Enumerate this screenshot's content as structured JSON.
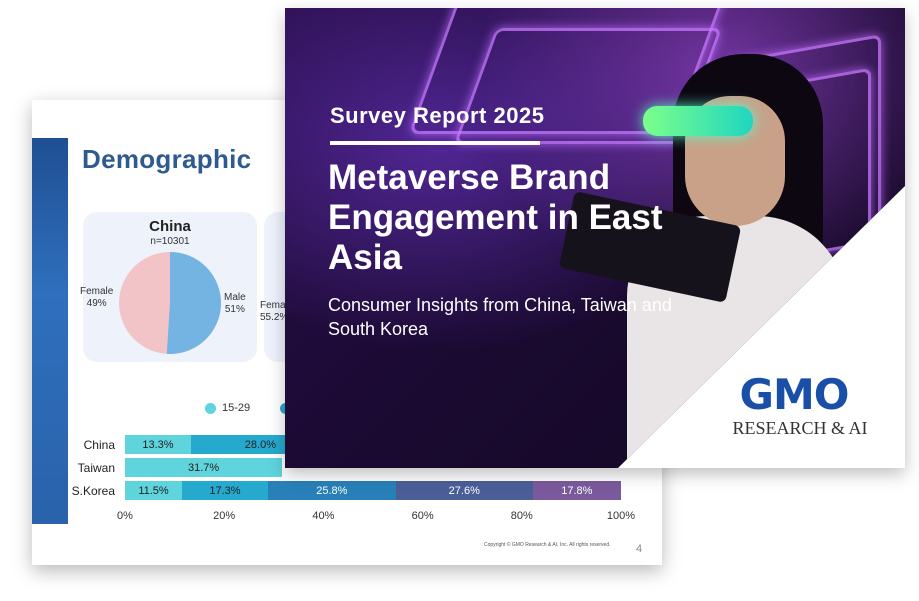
{
  "back_slide": {
    "title": "Demographic",
    "pie": {
      "country": "China",
      "n": "n=10301",
      "female_label": "Female",
      "female_pct": "49%",
      "male_label": "Male",
      "male_pct": "51%",
      "female_value": 49,
      "male_value": 51,
      "female_color": "#f2c4c8",
      "male_color": "#73b4e3"
    },
    "pie2_partial_label": "Female",
    "pie2_partial_pct": "55.2%",
    "legend_first": "15-29",
    "legend_color": "#5fd4dc",
    "chart_data": {
      "type": "bar",
      "orientation": "horizontal-stacked",
      "categories": [
        "China",
        "Taiwan",
        "S.Korea"
      ],
      "series_colors": [
        "#5fd4dc",
        "#26a9cf",
        "#2980b9",
        "#4b5e98",
        "#7a5a9c"
      ],
      "rows": [
        {
          "country": "China",
          "values": [
            13.3,
            28.0
          ],
          "labels": [
            "13.3%",
            "28.0%"
          ]
        },
        {
          "country": "Taiwan",
          "values": [
            31.7
          ],
          "labels": [
            "31.7%"
          ]
        },
        {
          "country": "S.Korea",
          "values": [
            11.5,
            17.3,
            25.8,
            27.6,
            17.8
          ],
          "labels": [
            "11.5%",
            "17.3%",
            "25.8%",
            "27.6%",
            "17.8%"
          ]
        }
      ],
      "ticks": [
        "0%",
        "20%",
        "40%",
        "60%",
        "80%",
        "100%"
      ],
      "xlim": [
        0,
        100
      ]
    },
    "copyright": "Copyright © GMO Research & AI, Inc. All rights reserved.",
    "page_number": "4"
  },
  "cover": {
    "kicker": "Survey Report 2025",
    "title": "Metaverse Brand Engagement in East Asia",
    "subtitle": "Consumer Insights from China, Taiwan and South Korea",
    "logo_text": "GMO",
    "logo_subtext": "RESEARCH & AI",
    "logo_color": "#1a4fa8"
  }
}
